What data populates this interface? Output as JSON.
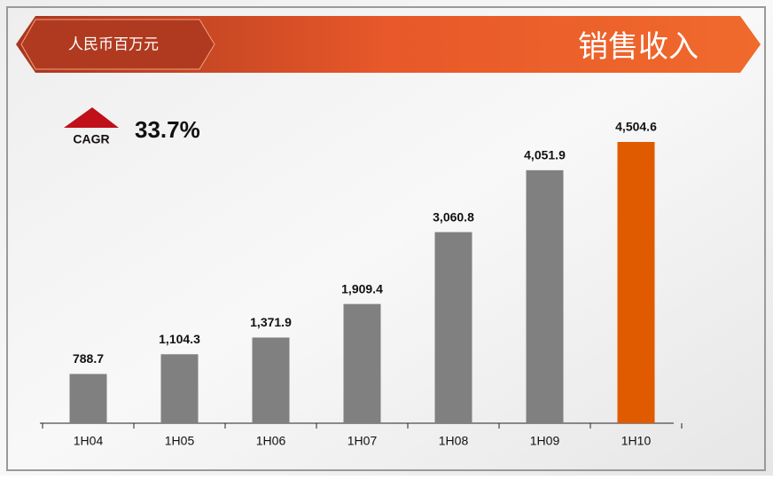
{
  "chart_data": {
    "type": "bar",
    "title": "销售收入",
    "subtitle": "人民币百万元",
    "annotations": {
      "cagr_label": "CAGR",
      "cagr_value": "33.7%"
    },
    "categories": [
      "1H04",
      "1H05",
      "1H06",
      "1H07",
      "1H08",
      "1H09",
      "1H10"
    ],
    "values": [
      788.7,
      1104.3,
      1371.9,
      1909.4,
      3060.8,
      4051.9,
      4504.6
    ],
    "value_labels": [
      "788.7",
      "1,104.3",
      "1,371.9",
      "1,909.4",
      "3,060.8",
      "4,051.9",
      "4,504.6"
    ],
    "colors": [
      "#808080",
      "#808080",
      "#808080",
      "#808080",
      "#808080",
      "#808080",
      "#e05a00"
    ]
  }
}
